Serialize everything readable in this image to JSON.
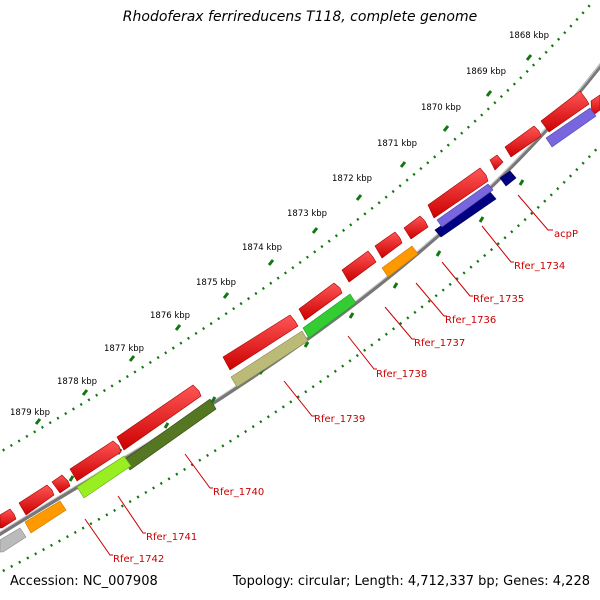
{
  "title": "Rhodoferax ferrireducens T118, complete genome",
  "footer": {
    "accession": "Accession: NC_007908",
    "summary": "Topology: circular; Length: 4,712,337 bp; Genes: 4,228"
  },
  "kbp_labels": [
    "1868 kbp",
    "1869 kbp",
    "1870 kbp",
    "1871 kbp",
    "1872 kbp",
    "1873 kbp",
    "1874 kbp",
    "1875 kbp",
    "1876 kbp",
    "1877 kbp",
    "1878 kbp",
    "1879 kbp"
  ],
  "gene_labels": [
    "acpP",
    "Rfer_1734",
    "Rfer_1735",
    "Rfer_1736",
    "Rfer_1737",
    "Rfer_1738",
    "Rfer_1739",
    "Rfer_1740",
    "Rfer_1741",
    "Rfer_1742"
  ],
  "colors": {
    "backbone": "#888888",
    "cds": "#ee1111",
    "ticks": "#117711",
    "label": "#cc0000",
    "blue_dark": "#000080",
    "blue_light": "#7766dd",
    "orange": "#ff9900",
    "green_bright": "#33cc33",
    "khaki": "#bbbb77",
    "olive": "#557722",
    "lime": "#99ee22",
    "grey": "#bbbbbb"
  }
}
